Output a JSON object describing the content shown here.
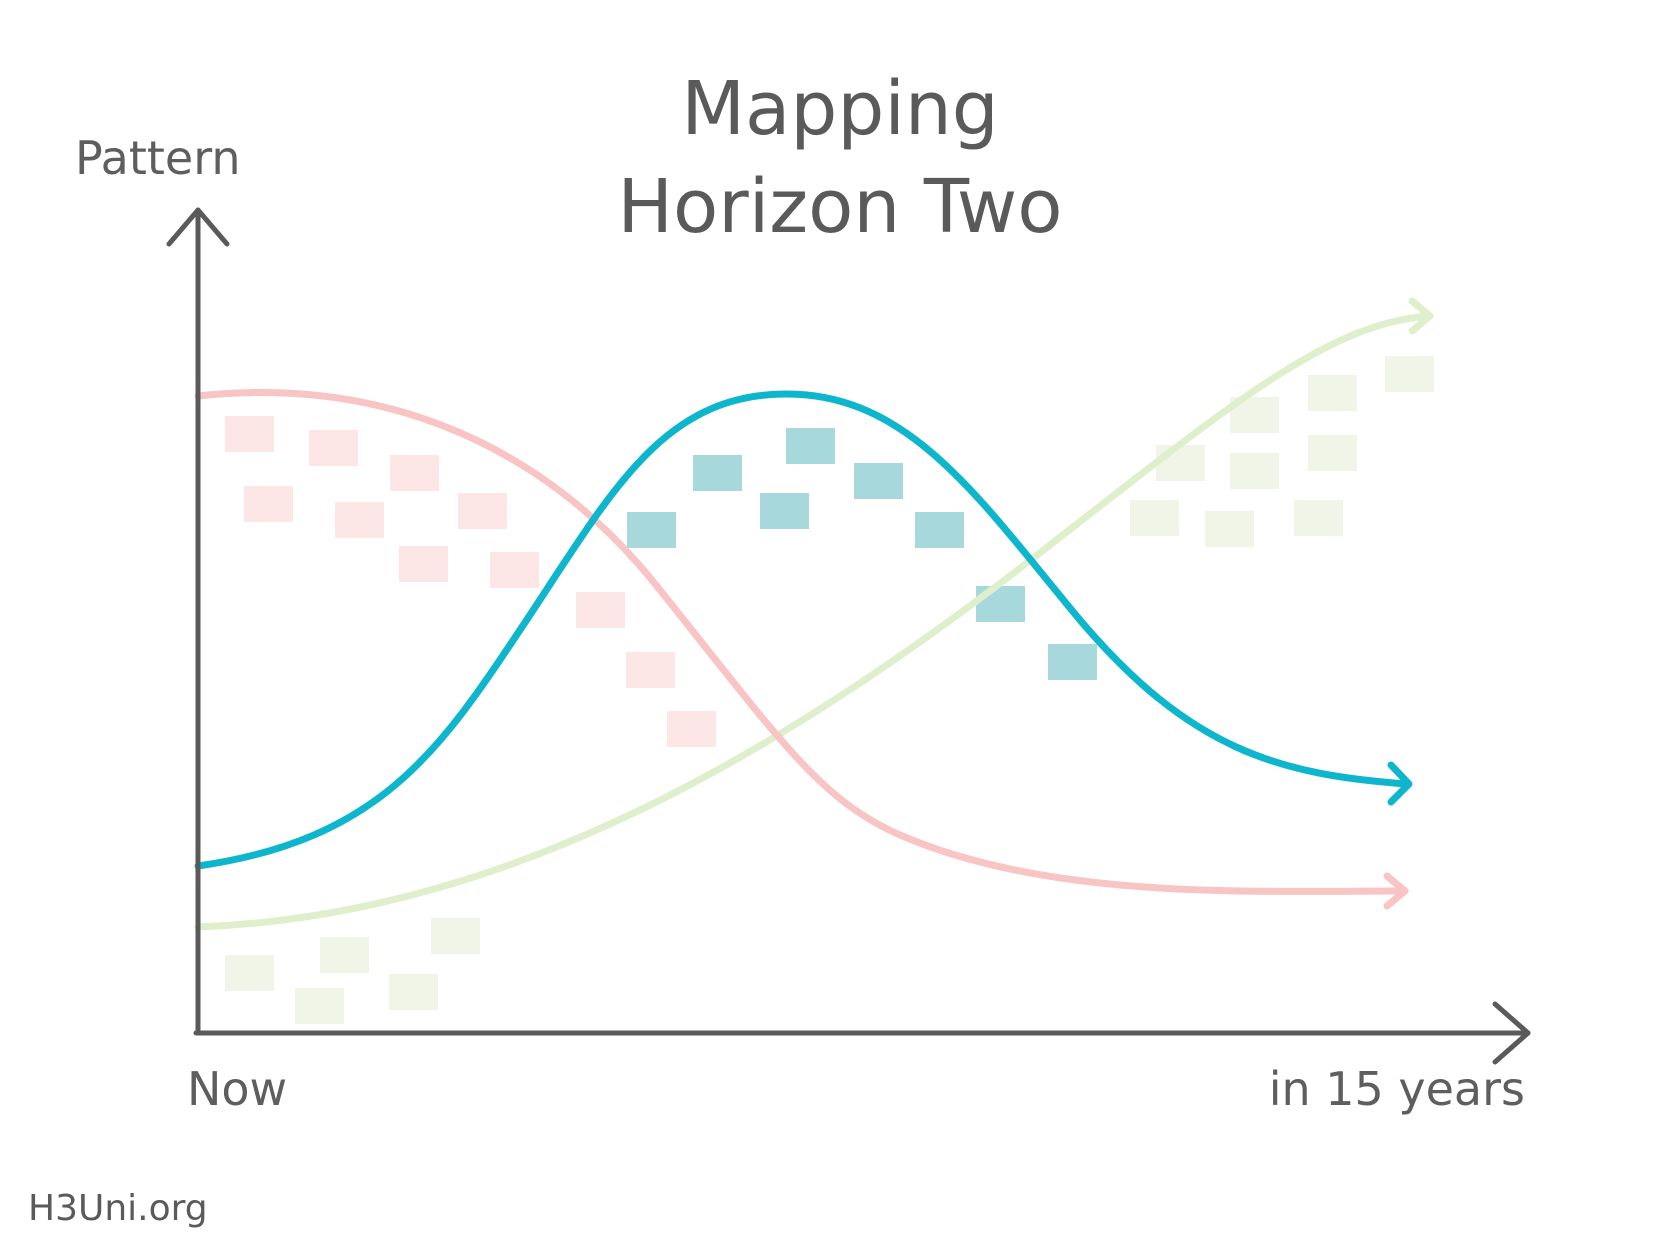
{
  "title": {
    "line1": "Mapping",
    "line2": "Horizon Two"
  },
  "axes": {
    "y_label": "Pattern",
    "x_start_label": "Now",
    "x_end_label": "in 15 years"
  },
  "footer": "H3Uni.org",
  "colors": {
    "axis": "#5a5a5a",
    "horizon_one": "#f9c4c4",
    "horizon_two": "#0db6cc",
    "horizon_three": "#dfefcc",
    "horizon_one_marks": "#fde6e6",
    "horizon_two_marks": "#a7d9dc",
    "horizon_three_marks": "#f1f5e8"
  }
}
